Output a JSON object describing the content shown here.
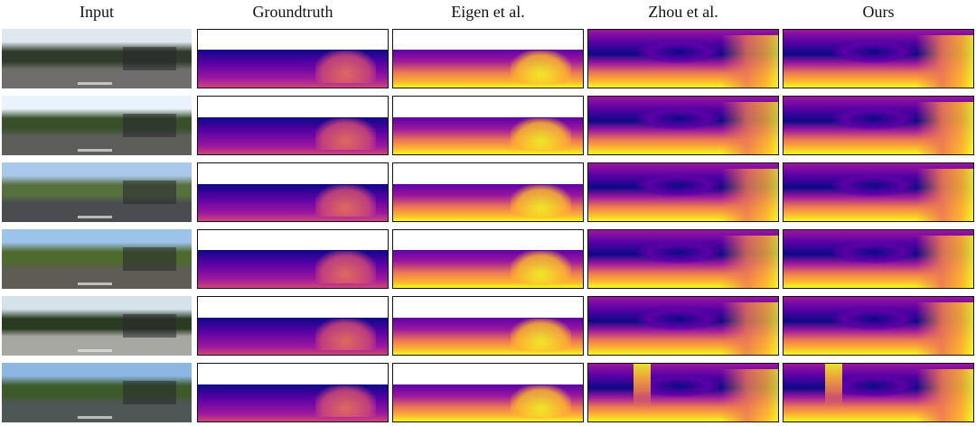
{
  "columns": [
    "Input",
    "Groundtruth",
    "Eigen et al.",
    "Zhou et al.",
    "Ours"
  ],
  "rows": 6,
  "colormap": [
    "#0d0887",
    "#5c01a6",
    "#9c179e",
    "#cc4778",
    "#ed7953",
    "#fdb42f",
    "#f0f921"
  ]
}
